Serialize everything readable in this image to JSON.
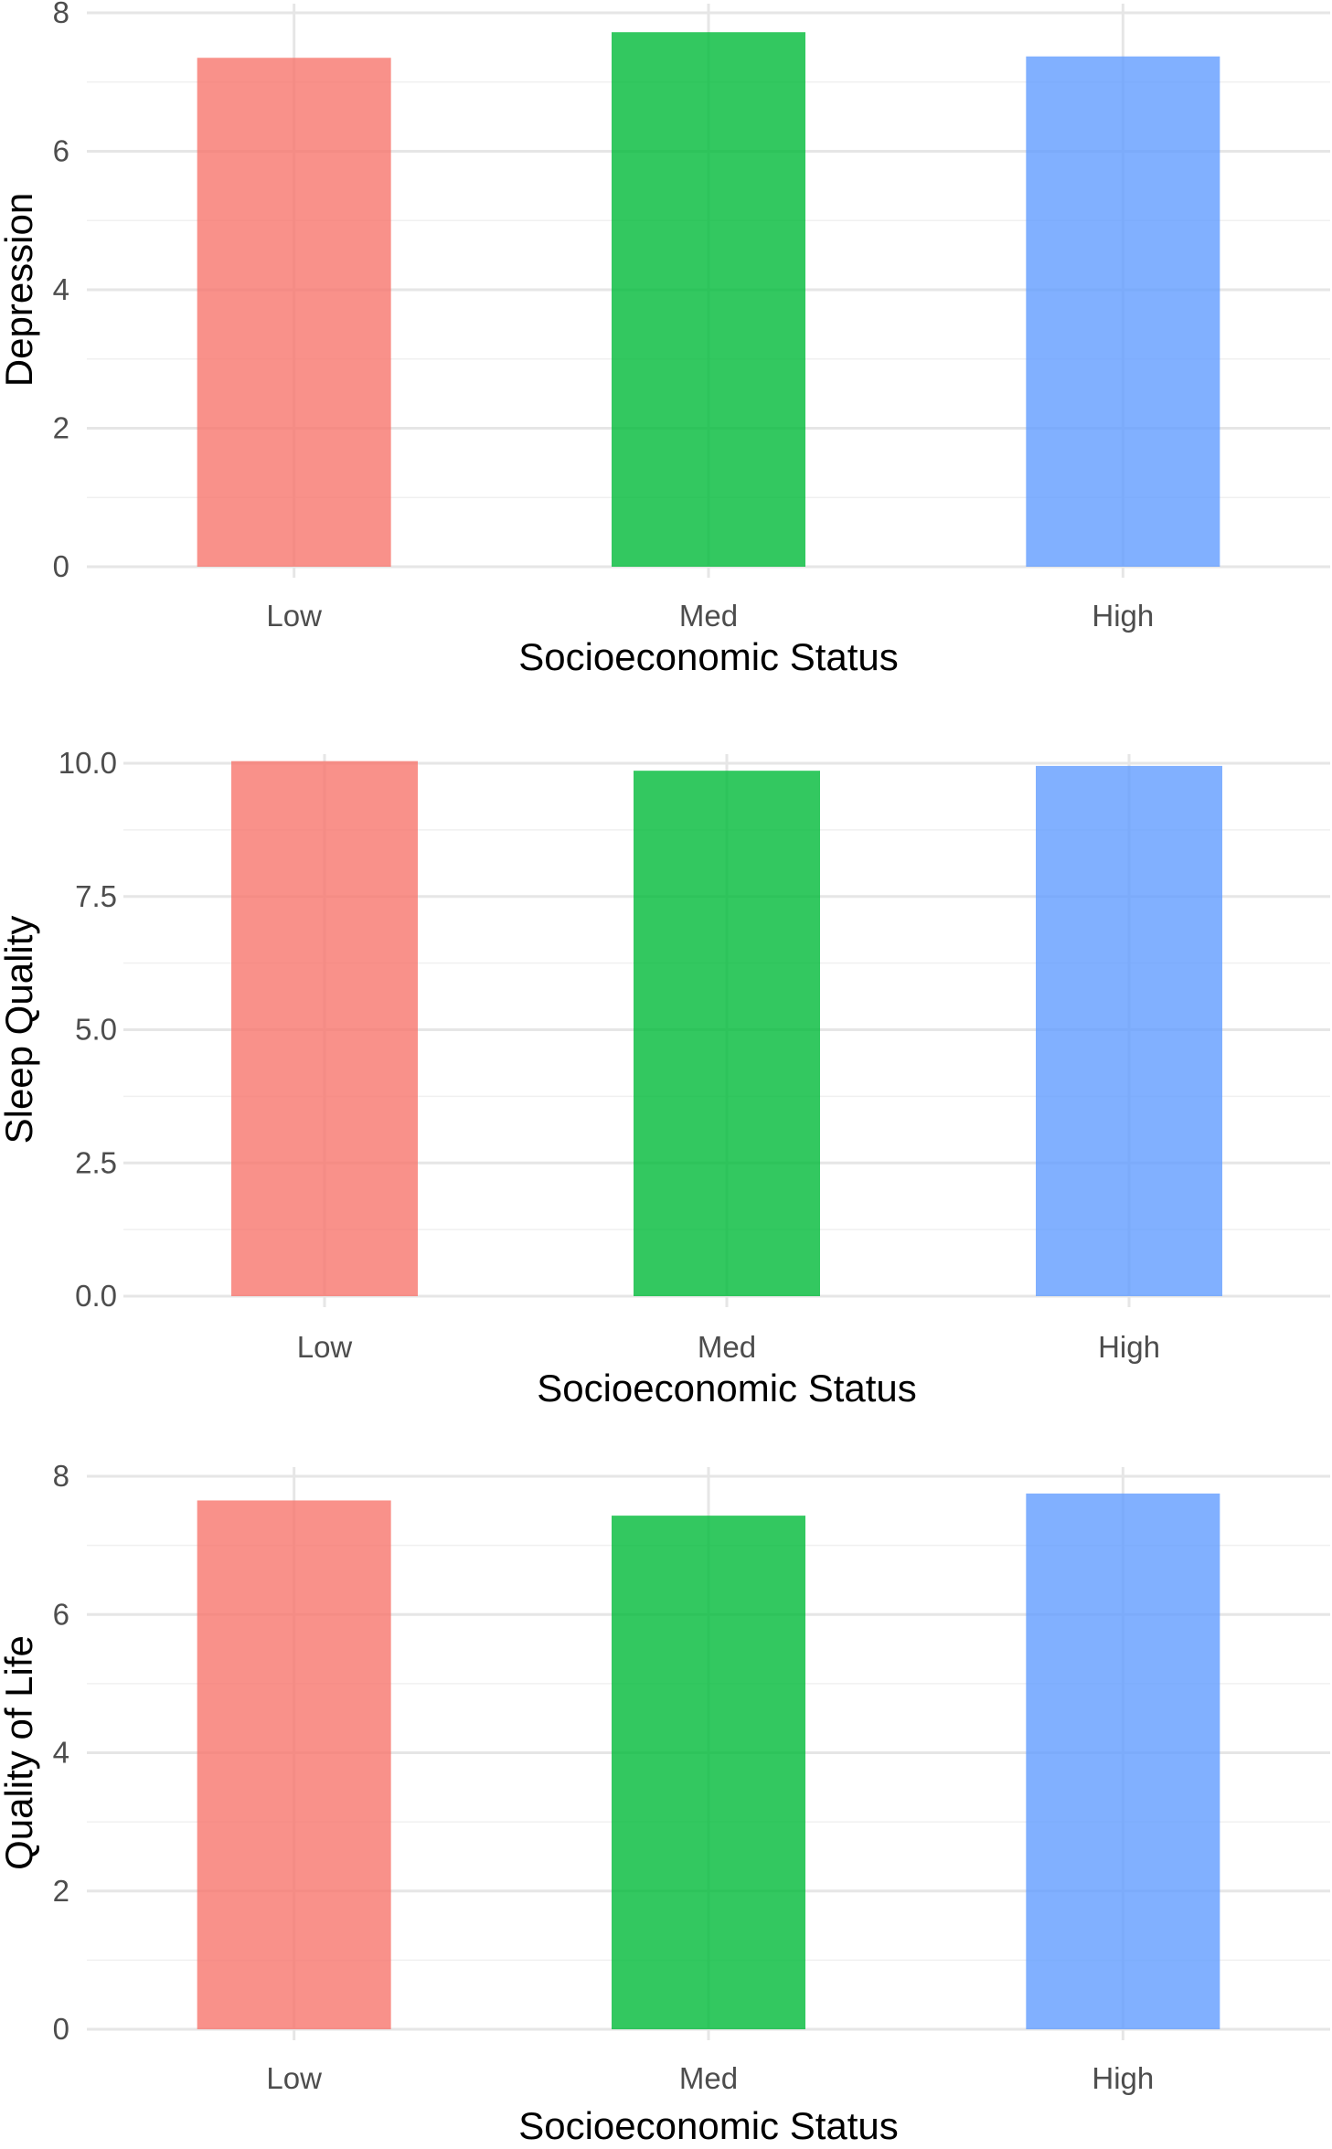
{
  "chart_data": [
    {
      "type": "bar",
      "title": "",
      "xlabel": "Socioeconomic Status",
      "ylabel": "Depression",
      "categories": [
        "Low",
        "Med",
        "High"
      ],
      "values": [
        7.35,
        7.72,
        7.37
      ],
      "colors": [
        "#F8766D",
        "#00BA38",
        "#619CFF"
      ],
      "ylim": [
        0,
        8
      ],
      "yticks": [
        0,
        2,
        4,
        6,
        8
      ],
      "ytick_labels": [
        "0",
        "2",
        "4",
        "6",
        "8"
      ],
      "grid": true,
      "legend": "none"
    },
    {
      "type": "bar",
      "title": "",
      "xlabel": "Socioeconomic Status",
      "ylabel": "Sleep Quality",
      "categories": [
        "Low",
        "Med",
        "High"
      ],
      "values": [
        10.04,
        9.86,
        9.95
      ],
      "colors": [
        "#F8766D",
        "#00BA38",
        "#619CFF"
      ],
      "ylim": [
        0,
        10
      ],
      "yticks": [
        0,
        2.5,
        5,
        7.5,
        10
      ],
      "ytick_labels": [
        "0.0",
        "2.5",
        "5.0",
        "7.5",
        "10.0"
      ],
      "grid": true,
      "legend": "none"
    },
    {
      "type": "bar",
      "title": "",
      "xlabel": "Socioeconomic Status",
      "ylabel": "Quality of Life",
      "categories": [
        "Low",
        "Med",
        "High"
      ],
      "values": [
        7.65,
        7.43,
        7.75
      ],
      "colors": [
        "#F8766D",
        "#00BA38",
        "#619CFF"
      ],
      "ylim": [
        0,
        8
      ],
      "yticks": [
        0,
        2,
        4,
        6,
        8
      ],
      "ytick_labels": [
        "0",
        "2",
        "4",
        "6",
        "8"
      ],
      "grid": true,
      "legend": "none"
    }
  ]
}
